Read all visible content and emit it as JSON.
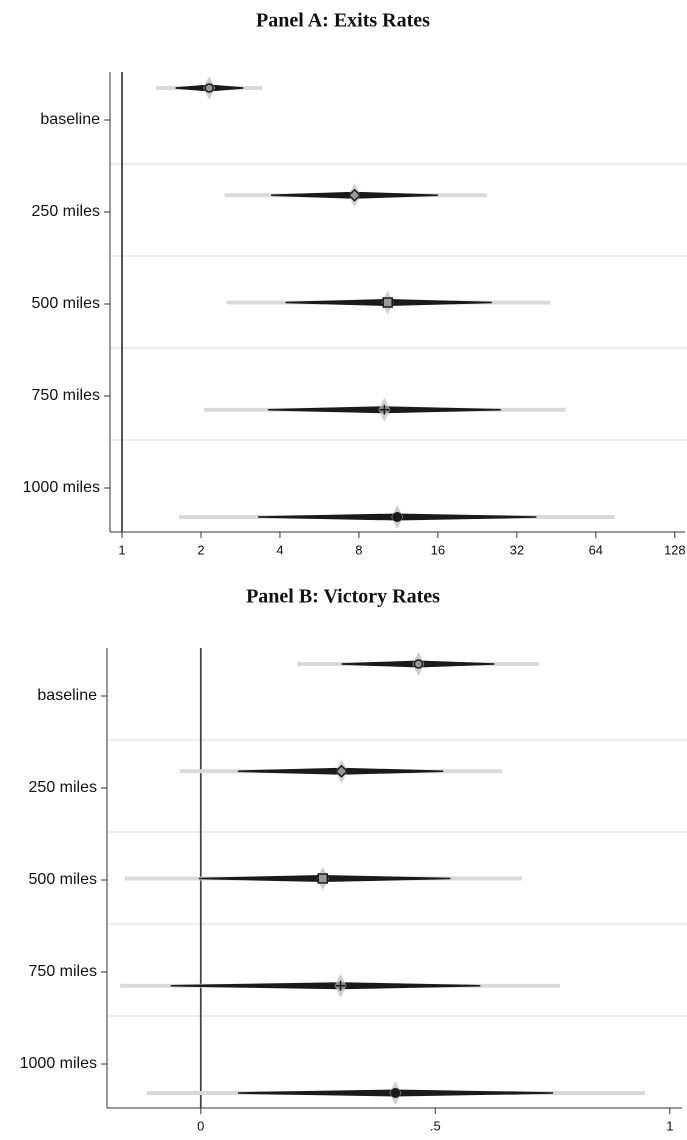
{
  "chart_data": [
    {
      "type": "coefficient",
      "title": "Panel A: Exits Rates",
      "xscale": "log",
      "categories": [
        "baseline",
        "250 miles",
        "500 miles",
        "750 miles",
        "1000 miles"
      ],
      "values": [
        2.15,
        7.7,
        10.3,
        10,
        11.2
      ],
      "ci_low_inner": [
        1.6,
        3.7,
        4.2,
        3.6,
        3.3
      ],
      "ci_high_inner": [
        2.9,
        16,
        25.7,
        27.8,
        38
      ],
      "ci_low": [
        1.35,
        2.46,
        2.5,
        2.05,
        1.65
      ],
      "ci_high": [
        3.43,
        24.6,
        43,
        49,
        75.6
      ],
      "markers": [
        "circle",
        "diamond",
        "square",
        "plus",
        "filled-circle"
      ],
      "color": "#1a1a1a",
      "ci_color": "#d9d9d9",
      "refline": 1,
      "grid": true,
      "xlim": [
        0.9,
        140
      ],
      "xticks": [
        1,
        2,
        4,
        8,
        16,
        32,
        64,
        128
      ]
    },
    {
      "type": "coefficient",
      "title": "Panel B: Victory Rates",
      "xscale": "linear",
      "categories": [
        "baseline",
        "250 miles",
        "500 miles",
        "750 miles",
        "1000 miles"
      ],
      "values": [
        0.464,
        0.3,
        0.26,
        0.298,
        0.415
      ],
      "ci_low_inner": [
        0.3,
        0.079,
        -0.004,
        -0.064,
        0.079
      ],
      "ci_high_inner": [
        0.626,
        0.517,
        0.532,
        0.596,
        0.751
      ],
      "ci_low": [
        0.206,
        -0.045,
        -0.162,
        -0.172,
        -0.115
      ],
      "ci_high": [
        0.721,
        0.643,
        0.685,
        0.766,
        0.947
      ],
      "markers": [
        "circle",
        "diamond",
        "square",
        "plus",
        "filled-circle"
      ],
      "color": "#1a1a1a",
      "ci_color": "#d9d9d9",
      "refline": 0,
      "grid": true,
      "xlim": [
        -0.2,
        1.026
      ],
      "xticks": [
        0,
        {
          "value": 0.5,
          "label": ".5"
        },
        1
      ]
    }
  ]
}
